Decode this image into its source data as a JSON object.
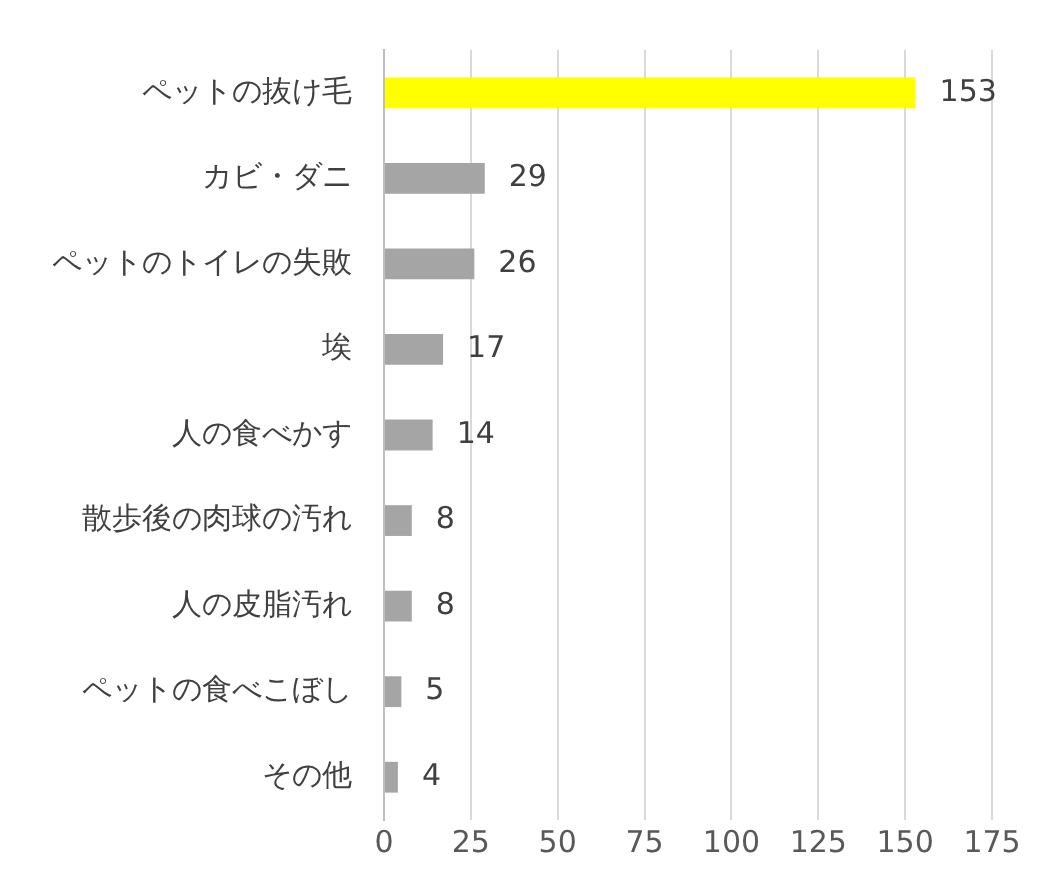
{
  "chart_data": {
    "type": "bar",
    "orientation": "horizontal",
    "categories": [
      "ペットの抜け毛",
      "カビ・ダニ",
      "ペットのトイレの失敗",
      "埃",
      "人の食べかす",
      "散歩後の肉球の汚れ",
      "人の皮脂汚れ",
      "ペットの食べこぼし",
      "その他"
    ],
    "values": [
      153,
      29,
      26,
      17,
      14,
      8,
      8,
      5,
      4
    ],
    "colors": [
      "#ffff00",
      "#a5a5a5",
      "#a5a5a5",
      "#a5a5a5",
      "#a5a5a5",
      "#a5a5a5",
      "#a5a5a5",
      "#a5a5a5",
      "#a5a5a5"
    ],
    "xlim": [
      0,
      175
    ],
    "xticks": [
      0,
      25,
      50,
      75,
      100,
      125,
      150,
      175
    ],
    "grid": "x",
    "data_labels": true
  }
}
